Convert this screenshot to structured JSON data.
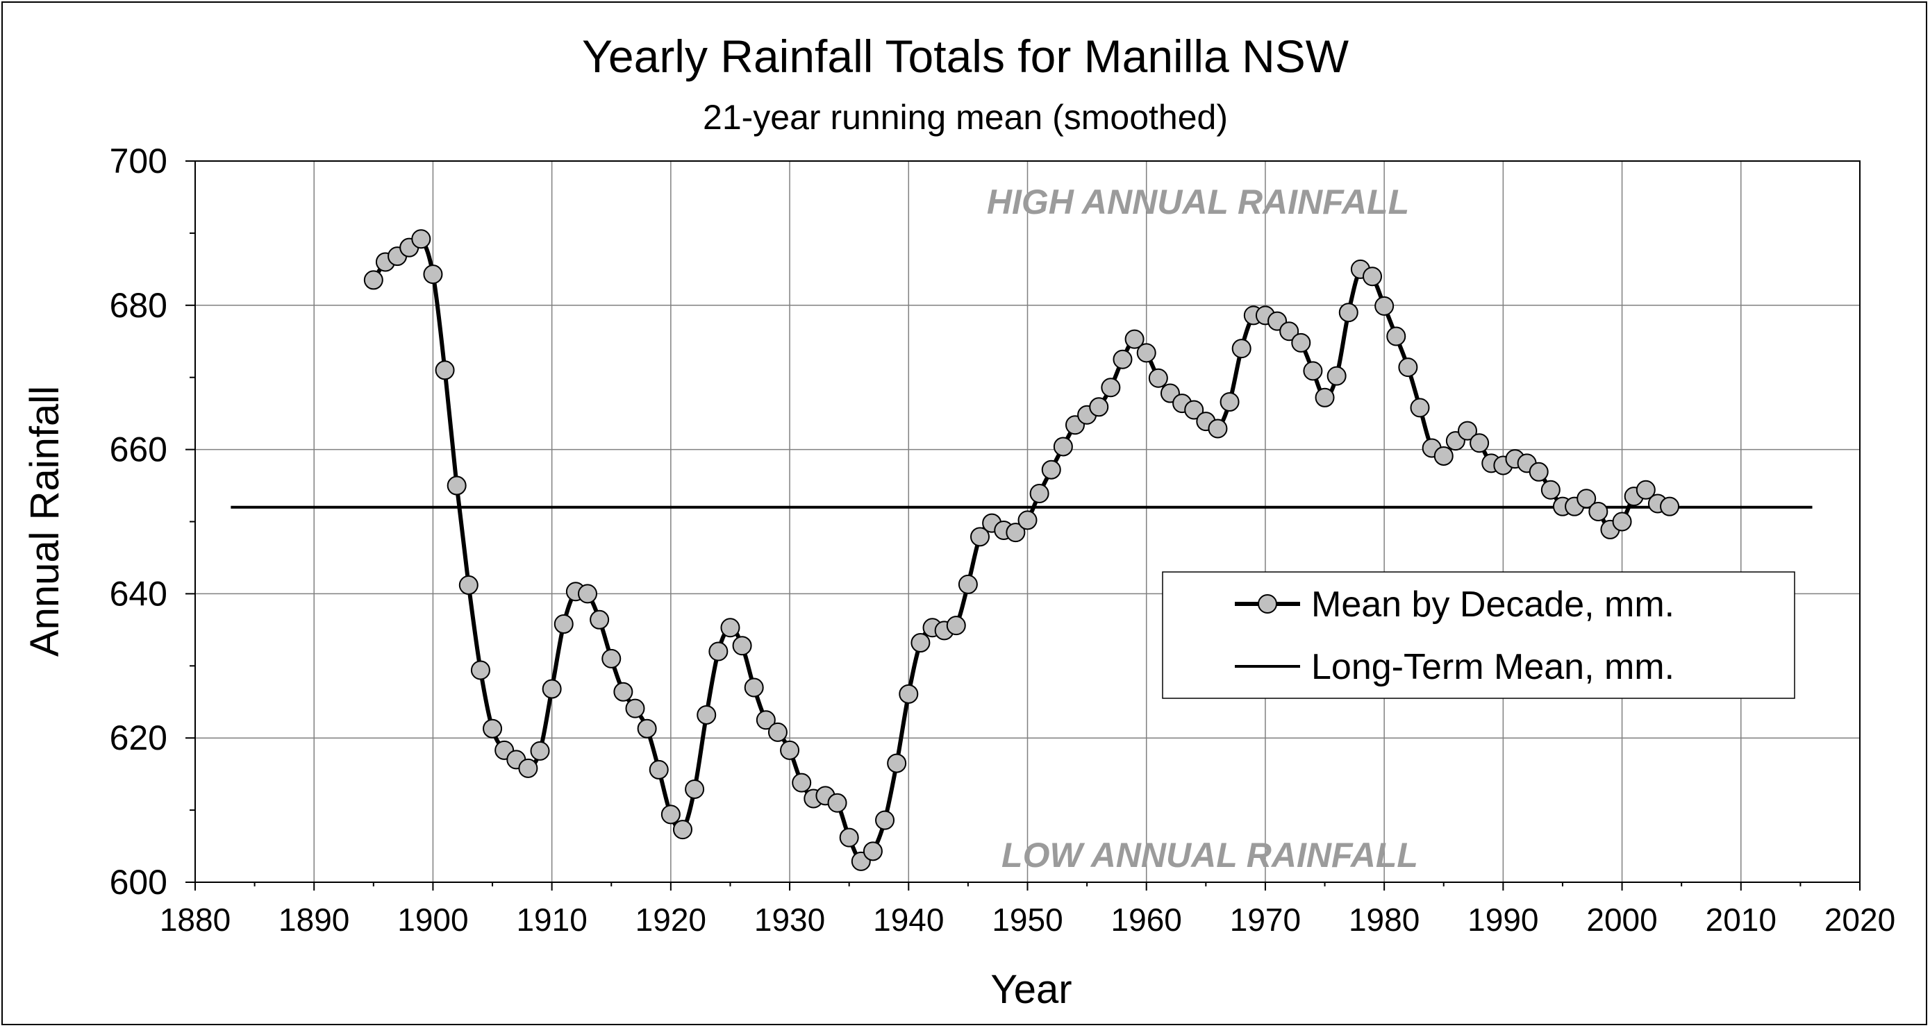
{
  "chart_data": {
    "type": "line",
    "title": "Yearly Rainfall Totals for Manilla NSW",
    "subtitle": "21-year running mean (smoothed)",
    "xlabel": "Year",
    "ylabel": "Annual Rainfall",
    "xlim": [
      1880,
      2020
    ],
    "ylim": [
      600,
      700
    ],
    "x_ticks": [
      1880,
      1890,
      1900,
      1910,
      1920,
      1930,
      1940,
      1950,
      1960,
      1970,
      1980,
      1990,
      2000,
      2010,
      2020
    ],
    "y_ticks": [
      600,
      620,
      640,
      660,
      680,
      700
    ],
    "grid": true,
    "legend_position": "right",
    "annotations": [
      "HIGH ANNUAL RAINFALL",
      "LOW ANNUAL RAINFALL"
    ],
    "series": [
      {
        "name": "Mean by Decade, mm.",
        "style": "line-with-markers",
        "color": "#000000",
        "marker_fill": "#c0c0c0",
        "x": [
          1895,
          1896,
          1897,
          1898,
          1899,
          1900,
          1901,
          1902,
          1903,
          1904,
          1905,
          1906,
          1907,
          1908,
          1909,
          1910,
          1911,
          1912,
          1913,
          1914,
          1915,
          1916,
          1917,
          1918,
          1919,
          1920,
          1921,
          1922,
          1923,
          1924,
          1925,
          1926,
          1927,
          1928,
          1929,
          1930,
          1931,
          1932,
          1933,
          1934,
          1935,
          1936,
          1937,
          1938,
          1939,
          1940,
          1941,
          1942,
          1943,
          1944,
          1945,
          1946,
          1947,
          1948,
          1949,
          1950,
          1951,
          1952,
          1953,
          1954,
          1955,
          1956,
          1957,
          1958,
          1959,
          1960,
          1961,
          1962,
          1963,
          1964,
          1965,
          1966,
          1967,
          1968,
          1969,
          1970,
          1971,
          1972,
          1973,
          1974,
          1975,
          1976,
          1977,
          1978,
          1979,
          1980,
          1981,
          1982,
          1983,
          1984,
          1985,
          1986,
          1987,
          1988,
          1989,
          1990,
          1991,
          1992,
          1993,
          1994,
          1995,
          1996,
          1997,
          1998,
          1999,
          2000,
          2001,
          2002,
          2003,
          2004
        ],
        "values": [
          683.5,
          686,
          686.8,
          688,
          689.2,
          684.3,
          671,
          655,
          641.2,
          629.4,
          621.3,
          618.3,
          617,
          615.8,
          618.2,
          626.8,
          635.8,
          640.3,
          640,
          636.4,
          631,
          626.4,
          624.1,
          621.3,
          615.6,
          609.4,
          607.3,
          612.9,
          623.2,
          632,
          635.3,
          632.8,
          627,
          622.5,
          620.8,
          618.3,
          613.8,
          611.6,
          612,
          611,
          606.2,
          602.9,
          604.3,
          608.6,
          616.5,
          626.1,
          633.2,
          635.3,
          634.9,
          635.6,
          641.3,
          647.9,
          649.8,
          648.8,
          648.5,
          650.2,
          653.9,
          657.2,
          660.4,
          663.4,
          664.8,
          665.9,
          668.6,
          672.5,
          675.3,
          673.4,
          669.9,
          667.8,
          666.4,
          665.5,
          663.9,
          662.9,
          666.6,
          674,
          678.6,
          678.6,
          677.8,
          676.4,
          674.8,
          670.9,
          667.2,
          670.2,
          679,
          685,
          684,
          679.9,
          675.7,
          671.4,
          665.8,
          660.2,
          659.1,
          661.2,
          662.6,
          660.9,
          658.1,
          657.8,
          658.7,
          658.1,
          656.9,
          654.4,
          652.1,
          652.1,
          653.2,
          651.4,
          648.9,
          650,
          653.5,
          654.4,
          652.5,
          652.1
        ]
      },
      {
        "name": "Long-Term Mean, mm.",
        "style": "line",
        "color": "#000000",
        "x": [
          1883,
          2016
        ],
        "values": [
          652,
          652
        ]
      }
    ]
  }
}
